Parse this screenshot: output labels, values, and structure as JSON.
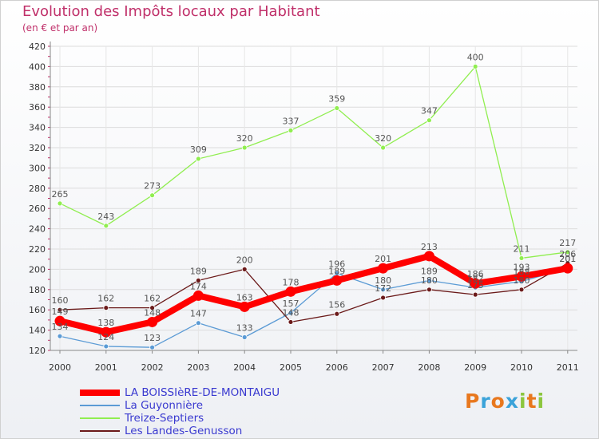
{
  "chart_data": {
    "type": "line",
    "title": "Evolution des Impôts locaux par Habitant",
    "subtitle": "(en € et par an)",
    "x": [
      "2000",
      "2001",
      "2002",
      "2003",
      "2004",
      "2005",
      "2006",
      "2007",
      "2008",
      "2009",
      "2010",
      "2011"
    ],
    "ylim": [
      120,
      420
    ],
    "yticks": [
      120,
      140,
      160,
      180,
      200,
      220,
      240,
      260,
      280,
      300,
      320,
      340,
      360,
      380,
      400,
      420
    ],
    "grid": true,
    "series": [
      {
        "name": "LA BOISSIèRE-DE-MONTAIGU",
        "color": "#ff0000",
        "values": [
          149,
          138,
          148,
          174,
          163,
          178,
          189,
          201,
          213,
          186,
          193,
          201
        ]
      },
      {
        "name": "La Guyonnière",
        "color": "#5b9bd5",
        "values": [
          134,
          124,
          123,
          147,
          133,
          157,
          196,
          180,
          189,
          182,
          188,
          201
        ]
      },
      {
        "name": "Treize-Septiers",
        "color": "#90ee50",
        "values": [
          265,
          243,
          273,
          309,
          320,
          337,
          359,
          320,
          347,
          400,
          211,
          217
        ]
      },
      {
        "name": "Les Landes-Genusson",
        "color": "#6b1a1a",
        "values": [
          160,
          162,
          162,
          189,
          200,
          148,
          156,
          172,
          180,
          175,
          180,
          206
        ]
      }
    ]
  },
  "legend": {
    "label_colors": [
      "#3a3ad0",
      "#3a3ad0",
      "#3a3ad0",
      "#3a3ad0"
    ]
  },
  "logo": {
    "text": "Proxiti"
  }
}
